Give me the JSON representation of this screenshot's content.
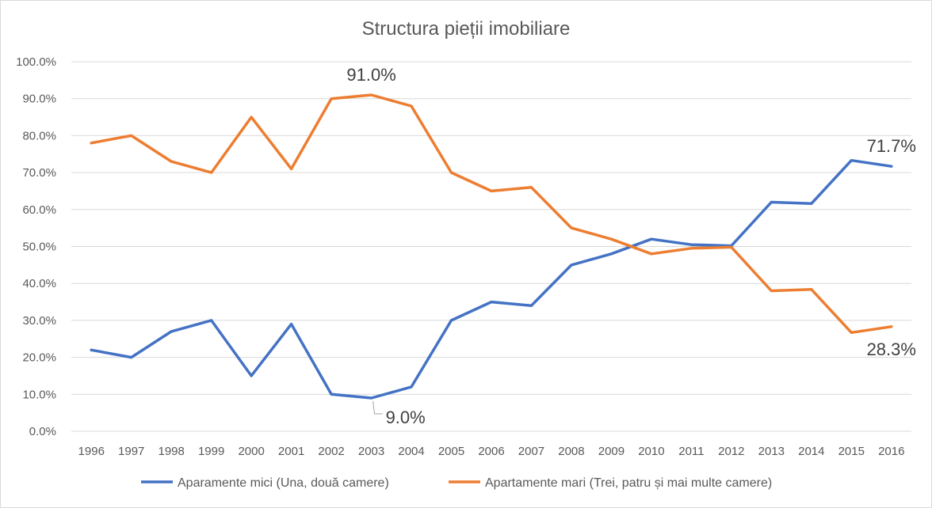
{
  "chart_data": {
    "type": "line",
    "title": "Structura pieții imobiliare",
    "xlabel": "",
    "ylabel": "",
    "categories": [
      "1996",
      "1997",
      "1998",
      "1999",
      "2000",
      "2001",
      "2002",
      "2003",
      "2004",
      "2005",
      "2006",
      "2007",
      "2008",
      "2009",
      "2010",
      "2011",
      "2012",
      "2013",
      "2014",
      "2015",
      "2016"
    ],
    "y_ticks": [
      "0.0%",
      "10.0%",
      "20.0%",
      "30.0%",
      "40.0%",
      "50.0%",
      "60.0%",
      "70.0%",
      "80.0%",
      "90.0%",
      "100.0%"
    ],
    "ylim": [
      0,
      100
    ],
    "grid": true,
    "legend_position": "bottom",
    "series": [
      {
        "name": "Aparamente mici (Una, două camere)",
        "color": "#4472c4",
        "values": [
          22,
          20,
          27,
          30,
          15,
          29,
          10,
          9,
          12,
          30,
          35,
          34,
          45,
          48,
          52,
          50.5,
          50.2,
          62,
          61.6,
          73.3,
          71.7
        ]
      },
      {
        "name": "Apartamente mari (Trei, patru și mai multe camere)",
        "color": "#ed7d31",
        "values": [
          78,
          80,
          73,
          70,
          85,
          71,
          90,
          91,
          88,
          70,
          65,
          66,
          55,
          52,
          48,
          49.5,
          49.8,
          38,
          38.4,
          26.7,
          28.3
        ]
      }
    ],
    "annotations": [
      {
        "text": "91.0%",
        "series": 1,
        "category": "2003"
      },
      {
        "text": "9.0%",
        "series": 0,
        "category": "2003"
      },
      {
        "text": "71.7%",
        "series": 0,
        "category": "2016"
      },
      {
        "text": "28.3%",
        "series": 1,
        "category": "2016"
      }
    ]
  }
}
